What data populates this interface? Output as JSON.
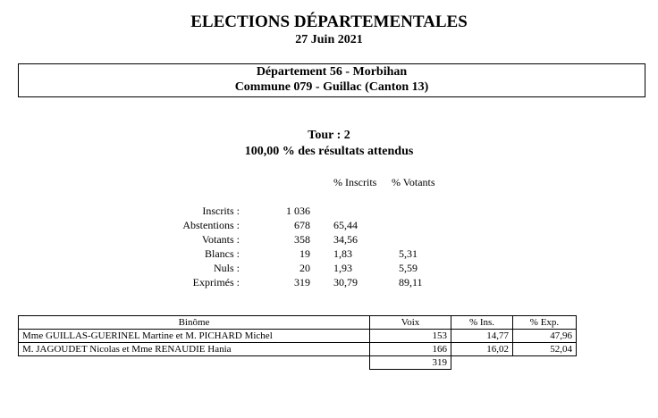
{
  "header": {
    "title": "ELECTIONS DÉPARTEMENTALES",
    "date": "27 Juin 2021"
  },
  "location": {
    "departement": "Département 56 - Morbihan",
    "commune": "Commune 079 - Guillac (Canton 13)"
  },
  "tour": {
    "label": "Tour : 2",
    "attendus": "100,00  % des résultats attendus"
  },
  "stats": {
    "col_inscrits": "% Inscrits",
    "col_votants": "% Votants",
    "rows": [
      {
        "label": "Inscrits :",
        "value": "1 036",
        "pct_ins": "",
        "pct_vot": ""
      },
      {
        "label": "Abstentions :",
        "value": "678",
        "pct_ins": "65,44",
        "pct_vot": ""
      },
      {
        "label": "Votants :",
        "value": "358",
        "pct_ins": "34,56",
        "pct_vot": ""
      },
      {
        "label": "Blancs :",
        "value": "19",
        "pct_ins": "1,83",
        "pct_vot": "5,31"
      },
      {
        "label": "Nuls :",
        "value": "20",
        "pct_ins": "1,93",
        "pct_vot": "5,59"
      },
      {
        "label": "Exprimés :",
        "value": "319",
        "pct_ins": "30,79",
        "pct_vot": "89,11"
      }
    ]
  },
  "results": {
    "headers": [
      "Binôme",
      "Voix",
      "% Ins.",
      "% Exp."
    ],
    "rows": [
      [
        "Mme GUILLAS-GUERINEL Martine et M. PICHARD Michel",
        "153",
        "14,77",
        "47,96"
      ],
      [
        "M. JAGOUDET Nicolas et Mme RENAUDIE Hania",
        "166",
        "16,02",
        "52,04"
      ]
    ],
    "total": "319"
  }
}
